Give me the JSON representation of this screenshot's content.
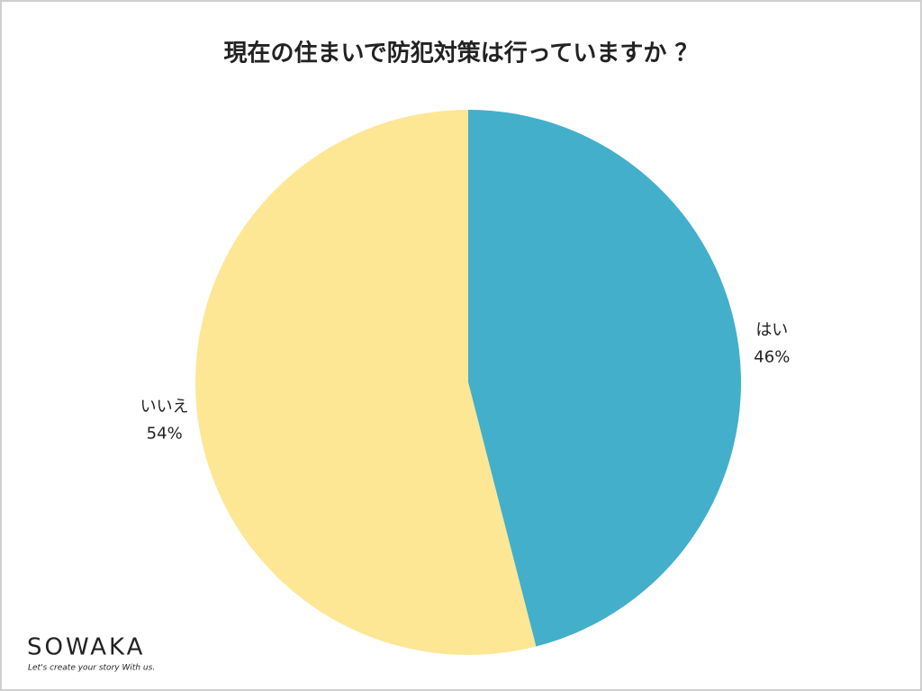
{
  "chart_data": {
    "type": "pie",
    "title": "現在の住まいで防犯対策は行っていますか ？",
    "categories": [
      "はい",
      "いいえ"
    ],
    "values": [
      46,
      54
    ],
    "value_labels": [
      "46%",
      "54%"
    ],
    "colors": [
      "#43afcb",
      "#fde795"
    ]
  },
  "logo": {
    "name": "SOWAKA",
    "tagline": "Let's create your story With us."
  }
}
